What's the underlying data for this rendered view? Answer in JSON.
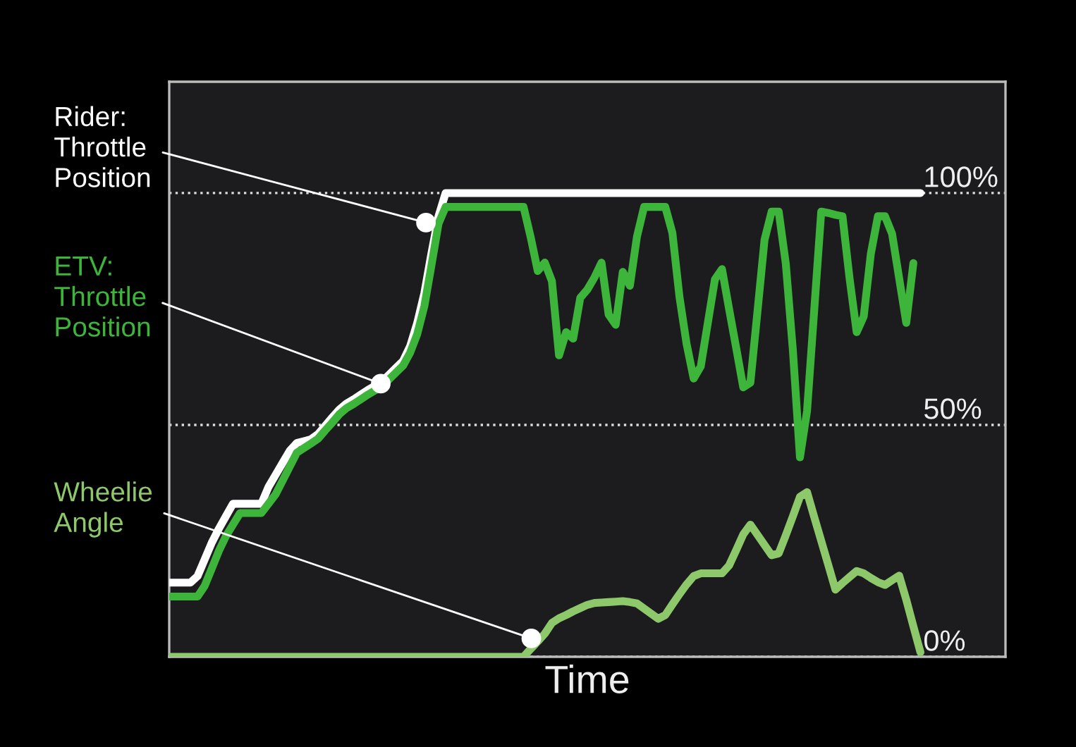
{
  "chart_data": {
    "type": "line",
    "xlabel": "Time",
    "ylim": [
      0,
      124
    ],
    "categories": [
      null,
      null,
      null,
      null,
      null,
      null,
      null,
      null,
      null,
      null,
      null,
      null,
      null,
      null,
      null,
      null,
      null,
      null,
      null,
      null,
      null,
      null,
      null,
      null,
      null,
      null,
      null,
      null,
      null,
      null,
      null,
      null,
      null,
      null,
      null,
      null,
      null,
      null,
      null,
      null,
      null,
      null,
      null,
      null,
      null,
      null,
      null,
      null,
      null,
      null,
      null,
      null,
      null,
      null,
      null,
      null,
      null,
      null,
      null,
      null,
      null,
      null,
      null,
      null,
      null,
      null,
      null,
      null,
      null,
      null,
      null,
      null,
      null,
      null,
      null,
      null,
      null,
      null,
      null,
      null,
      null,
      null,
      null,
      null,
      null,
      null,
      null,
      null,
      null,
      null,
      null,
      null,
      null,
      null,
      null,
      null,
      null,
      null,
      null,
      null,
      null,
      null,
      null,
      null,
      null,
      null,
      null,
      null,
      null,
      null,
      null,
      null,
      null,
      null,
      null,
      null,
      null,
      null,
      null
    ],
    "yticks": [
      {
        "value": 0,
        "label": "0%"
      },
      {
        "value": 50,
        "label": "50%"
      },
      {
        "value": 100,
        "label": "100%"
      }
    ],
    "tick_labels": "y",
    "grid": "y",
    "line_style": "solid",
    "marker": "none",
    "series": [
      {
        "color": "#ffffff",
        "values": [
          16,
          16,
          16,
          16,
          17.4,
          21,
          24.6,
          27.6,
          30.3,
          33,
          33,
          33,
          33,
          33,
          36.6,
          39.2,
          41.8,
          44.4,
          46.1,
          46.5,
          46.9,
          48,
          49.8,
          51.6,
          53.3,
          54.6,
          55.5,
          56.5,
          57.5,
          58.4,
          59.3,
          60.8,
          62.3,
          63.8,
          67,
          72,
          78.4,
          87,
          95,
          100,
          100,
          100,
          100,
          100,
          100,
          100,
          100,
          100,
          100,
          100,
          100,
          100,
          100,
          100,
          100,
          100,
          100,
          100,
          100,
          100,
          100,
          100,
          100,
          100,
          100,
          100,
          100,
          100,
          100,
          100,
          100,
          100,
          100,
          100,
          100,
          100,
          100,
          100,
          100,
          100,
          100,
          100,
          100,
          100,
          100,
          100,
          100,
          100,
          100,
          100,
          100,
          100,
          100,
          100,
          100,
          100,
          100,
          100,
          100,
          100,
          100,
          100,
          100,
          100,
          100,
          100,
          100,
          null,
          null,
          null,
          null,
          null,
          null,
          null,
          null,
          null,
          null,
          null,
          null
        ]
      },
      {
        "color": "#3db53a",
        "values": [
          13,
          13,
          13,
          13,
          13,
          15.3,
          19,
          22.8,
          26,
          28.5,
          31,
          31,
          31,
          31,
          33,
          35,
          38,
          41,
          44,
          45,
          46,
          47,
          48.8,
          50.5,
          52.3,
          53.6,
          54.5,
          55.5,
          56.5,
          57.4,
          58.3,
          59.8,
          61.3,
          62.8,
          65.6,
          69.6,
          75.6,
          84.4,
          93.4,
          97,
          97,
          97,
          97,
          97,
          97,
          97,
          97,
          97,
          97,
          97,
          97,
          90.5,
          83.2,
          85,
          81,
          65,
          70,
          68.6,
          77.4,
          79.2,
          81.8,
          85,
          73.8,
          71.6,
          83,
          80,
          90.6,
          97,
          97,
          97,
          97,
          91.4,
          77.6,
          67.5,
          60,
          62.6,
          72,
          81.4,
          83.6,
          75,
          66.6,
          58.1,
          59.1,
          74.4,
          89.9,
          96,
          96,
          84.8,
          66.1,
          43,
          53,
          74.5,
          96,
          95.7,
          95.3,
          95,
          81.6,
          70,
          73.4,
          86.9,
          95,
          95,
          91.2,
          81.6,
          72,
          84.9,
          null,
          null,
          null,
          null,
          null,
          null,
          null,
          null,
          null,
          null,
          null,
          null,
          null
        ]
      },
      {
        "color": "#8dc86a",
        "values": [
          0,
          0,
          0,
          0,
          0,
          0,
          0,
          0,
          0,
          0,
          0,
          0,
          0,
          0,
          0,
          0,
          0,
          0,
          0,
          0,
          0,
          0,
          0,
          0,
          0,
          0,
          0,
          0,
          0,
          0,
          0,
          0,
          0,
          0,
          0,
          0,
          0,
          0,
          0,
          0,
          0,
          0,
          0,
          0,
          0,
          0,
          0,
          0,
          0,
          0,
          0,
          1.7,
          3.3,
          5,
          7.3,
          8.3,
          9,
          9.8,
          10.5,
          11.2,
          11.6,
          11.7,
          11.8,
          11.9,
          12,
          11.8,
          11.5,
          10.4,
          9.3,
          8.2,
          9,
          11.3,
          13.5,
          15.6,
          17.4,
          18,
          18,
          18,
          18,
          19.7,
          23,
          26.4,
          28.5,
          26.3,
          24.1,
          21.9,
          22.3,
          26.2,
          30.3,
          34.5,
          35.5,
          30.2,
          25,
          19.8,
          14.5,
          15.9,
          17.2,
          18.5,
          18,
          17,
          16.1,
          15.5,
          16.5,
          17.5,
          12.3,
          6.6,
          1,
          null,
          null,
          null,
          null,
          null,
          null,
          null,
          null,
          null,
          null,
          null,
          null
        ]
      }
    ],
    "annotations": [
      "Rider:\nThrottle\nPosition",
      "ETV:\nThrottle\nPosition",
      "Wheelie\nAngle"
    ]
  }
}
